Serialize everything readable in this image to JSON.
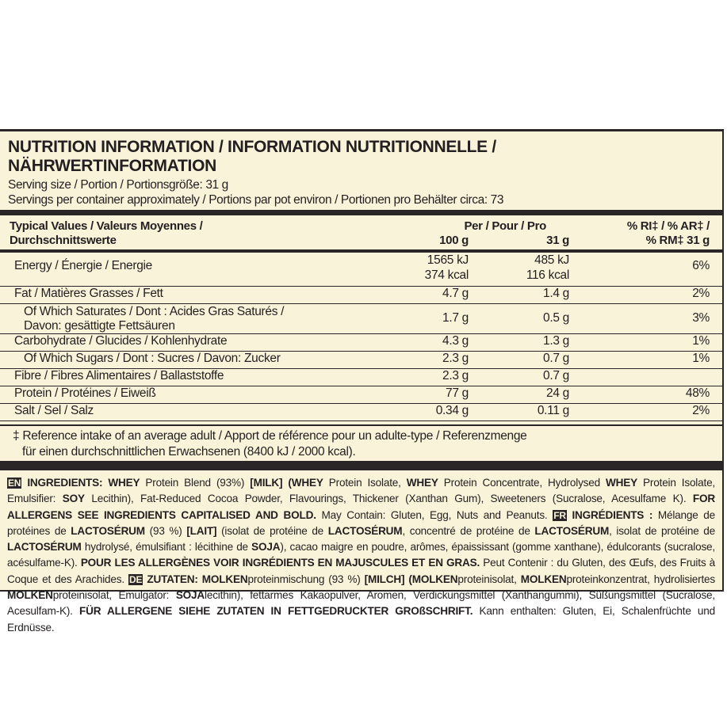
{
  "title_line1": "NUTRITION INFORMATION / INFORMATION NUTRITIONNELLE /",
  "title_line2": "NÄHRWERTINFORMATION",
  "serving_size": "Serving size / Portion / Portionsgröße: 31 g",
  "servings_per_container": "Servings per container approximately / Portions par pot environ / Portionen pro Behälter circa: 73",
  "table": {
    "header": {
      "label1": "Typical Values / Valeurs Moyennes /",
      "label2": "Durchschnittswerte",
      "per": "Per / Pour / Pro",
      "col1": "100 g",
      "col2": "31 g",
      "ri1": "% RI‡ / % AR‡ /",
      "ri2": "% RM‡ 31 g"
    },
    "rows": [
      {
        "label": "Energy / Énergie / Energie",
        "per100": "1565 kJ",
        "per100b": "374 kcal",
        "per31": "485 kJ",
        "per31b": "116 kcal",
        "ri": "6%"
      },
      {
        "label": "Fat / Matières Grasses / Fett",
        "per100": "4.7 g",
        "per31": "1.4 g",
        "ri": "2%"
      },
      {
        "label": "Of Which Saturates / Dont : Acides Gras Saturés /",
        "label2": "Davon: gesättigte Fettsäuren",
        "per100": "1.7 g",
        "per31": "0.5 g",
        "ri": "3%"
      },
      {
        "label": "Carbohydrate / Glucides / Kohlenhydrate",
        "per100": "4.3 g",
        "per31": "1.3 g",
        "ri": "1%"
      },
      {
        "label": "Of Which Sugars / Dont : Sucres / Davon: Zucker",
        "per100": "2.3 g",
        "per31": "0.7 g",
        "ri": "1%"
      },
      {
        "label": "Fibre / Fibres Alimentaires / Ballaststoffe",
        "per100": "2.3 g",
        "per31": "0.7 g",
        "ri": ""
      },
      {
        "label": "Protein / Protéines / Eiweiß",
        "per100": "77 g",
        "per31": "24 g",
        "ri": "48%"
      },
      {
        "label": "Salt / Sel / Salz",
        "per100": "0.34 g",
        "per31": "0.11 g",
        "ri": "2%"
      }
    ]
  },
  "footnote_line1": "‡ Reference intake of an average adult / Apport de référence pour un adulte-type / Referenzmenge",
  "footnote_line2": "für einen durchschnittlichen Erwachsenen (8400 kJ / 2000 kcal).",
  "ingredients": [
    {
      "t": "EN",
      "s": "badge"
    },
    {
      "t": " INGREDIENTS: WHEY",
      "s": "b"
    },
    {
      "t": " Protein Blend (93%) "
    },
    {
      "t": "[MILK] (WHEY",
      "s": "b"
    },
    {
      "t": " Protein Isolate, "
    },
    {
      "t": "WHEY",
      "s": "b"
    },
    {
      "t": " Protein Concentrate, Hydrolysed "
    },
    {
      "t": "WHEY",
      "s": "b"
    },
    {
      "t": " Protein Isolate, Emulsifier: "
    },
    {
      "t": "SOY",
      "s": "b"
    },
    {
      "t": " Lecithin), Fat-Reduced Cocoa Powder, Flavourings, Thickener (Xanthan Gum), Sweeteners (Sucralose, Acesulfame K). "
    },
    {
      "t": "FOR ALLERGENS SEE INGREDIENTS CAPITALISED AND BOLD.",
      "s": "b"
    },
    {
      "t": " May Contain: Gluten, Egg, Nuts and Peanuts. "
    },
    {
      "t": "FR",
      "s": "badge"
    },
    {
      "t": " INGRÉDIENTS :",
      "s": "b"
    },
    {
      "t": " Mélange de protéines de "
    },
    {
      "t": "LACTOSÉRUM",
      "s": "b"
    },
    {
      "t": " (93 %) "
    },
    {
      "t": "[LAIT]",
      "s": "b"
    },
    {
      "t": " (isolat de protéine de "
    },
    {
      "t": "LACTOSÉRUM",
      "s": "b"
    },
    {
      "t": ", concentré de protéine de "
    },
    {
      "t": "LACTOSÉRUM",
      "s": "b"
    },
    {
      "t": ", isolat de protéine de "
    },
    {
      "t": "LACTOSÉRUM",
      "s": "b"
    },
    {
      "t": " hydrolysé, émulsifiant : lécithine de "
    },
    {
      "t": "SOJA",
      "s": "b"
    },
    {
      "t": "), cacao maigre en poudre, arômes, épaississant (gomme xanthane), édulcorants (sucralose, acésulfame-K). "
    },
    {
      "t": "POUR LES ALLERGÈNES VOIR INGRÉDIENTS EN MAJUSCULES ET EN GRAS.",
      "s": "b"
    },
    {
      "t": " Peut Contenir : du Gluten, des Œufs, des Fruits à Coque et des Arachides. "
    },
    {
      "t": "DE",
      "s": "badge"
    },
    {
      "t": " ZUTATEN: MOLKEN",
      "s": "b"
    },
    {
      "t": "proteinmischung (93 %) "
    },
    {
      "t": "[MILCH] (MOLKEN",
      "s": "b"
    },
    {
      "t": "proteinisolat, "
    },
    {
      "t": "MOLKEN",
      "s": "b"
    },
    {
      "t": "proteinkonzentrat, hydrolisiertes "
    },
    {
      "t": "MOLKEN",
      "s": "b"
    },
    {
      "t": "proteinisolat, Emulgator: "
    },
    {
      "t": "SOJA",
      "s": "b"
    },
    {
      "t": "lecithin), fettarmes Kakaopulver, Aromen, Verdickungsmittel (Xanthangummi), Süßungsmittel (Sucralose, Acesulfam-K). "
    },
    {
      "t": "FÜR ALLERGENE SIEHE ZUTATEN IN FETTGEDRUCKTER GROßSCHRIFT.",
      "s": "b"
    },
    {
      "t": " Kann enthalten: Gluten, Ei, Schalenfrüchte und Erdnüsse."
    }
  ]
}
